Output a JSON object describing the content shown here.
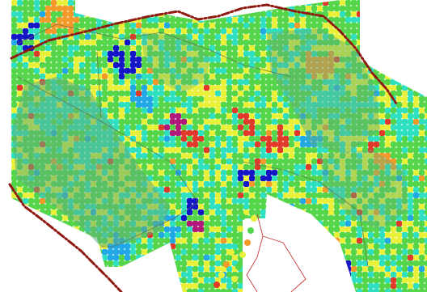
{
  "map": {
    "kind": "raster-heatmap-overlay",
    "background": "#ffffff",
    "palette": {
      "low": "#1515c8",
      "low_mid": "#22a8e6",
      "cyan": "#2fe0c0",
      "mid": "#55d64a",
      "mid_high": "#e8f03a",
      "high": "#f39a2a",
      "peak": "#e23a2a",
      "extreme": "#b0187a",
      "zone_fill": "#5fae7a"
    },
    "line_styles": {
      "boundary": {
        "color": "#8f1a12",
        "pattern": "dash-dot"
      },
      "road_outline": {
        "color": "#5a6b4a",
        "pattern": "solid-thin"
      },
      "channel_outline": {
        "color": "#c83a3a",
        "pattern": "solid-thin"
      }
    },
    "layers": [
      {
        "id": "heat-raster",
        "visible": true
      },
      {
        "id": "zone-polygons",
        "visible": true
      },
      {
        "id": "boundary-lines",
        "visible": true
      },
      {
        "id": "river-channels",
        "visible": true
      },
      {
        "id": "point-samples",
        "visible": true
      }
    ]
  }
}
